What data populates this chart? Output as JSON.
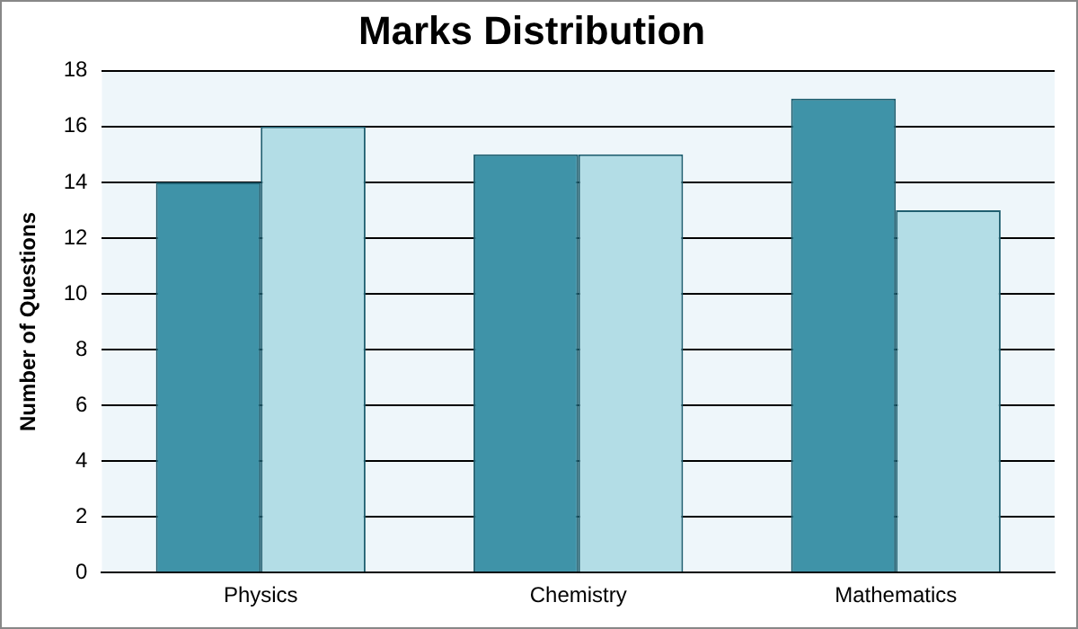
{
  "chart_data": {
    "type": "bar",
    "title": "Marks Distribution",
    "ylabel": "Number of Questions",
    "categories": [
      "Physics",
      "Chemistry",
      "Mathematics"
    ],
    "series": [
      {
        "color": "#3f93a8",
        "values": [
          14,
          15,
          17
        ]
      },
      {
        "color": "#b3dde6",
        "values": [
          16,
          15,
          13
        ]
      }
    ],
    "ylim": [
      0,
      18
    ],
    "yticks": [
      0,
      2,
      4,
      6,
      8,
      10,
      12,
      14,
      16,
      18
    ],
    "grid": "y",
    "legend": false
  }
}
